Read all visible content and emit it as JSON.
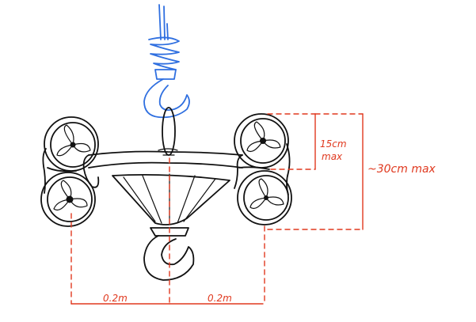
{
  "colors": {
    "ink": "#111111",
    "hook_upper": "#2f6fe0",
    "annotation": "#e0391f",
    "background": "#ffffff"
  },
  "annotations": {
    "rotor_height": [
      "15cm",
      "max"
    ],
    "total_height": "~30cm max",
    "left_span": "0.2m",
    "right_span": "0.2m"
  }
}
